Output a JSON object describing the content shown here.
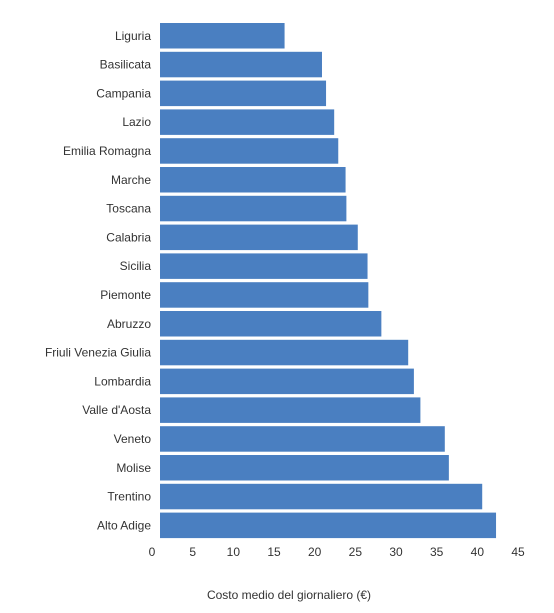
{
  "chart_data": {
    "type": "bar",
    "orientation": "horizontal",
    "categories": [
      "Liguria",
      "Basilicata",
      "Campania",
      "Lazio",
      "Emilia Romagna",
      "Marche",
      "Toscana",
      "Calabria",
      "Sicilia",
      "Piemonte",
      "Abruzzo",
      "Friuli Venezia Giulia",
      "Lombardia",
      "Valle d'Aosta",
      "Veneto",
      "Molise",
      "Trentino",
      "Alto Adige"
    ],
    "values": [
      16.3,
      20.9,
      21.4,
      22.4,
      22.9,
      23.8,
      23.9,
      25.3,
      26.5,
      26.6,
      28.2,
      31.5,
      32.2,
      33.0,
      36.0,
      36.5,
      40.6,
      42.3
    ],
    "xlabel": "Costo medio del giornaliero (€)",
    "ylabel": "",
    "xlim": [
      0,
      45
    ],
    "ticks": [
      "0",
      "5",
      "10",
      "15",
      "20",
      "25",
      "30",
      "35",
      "40",
      "45"
    ],
    "bar_color": "#4a7fc1",
    "grid": false
  }
}
